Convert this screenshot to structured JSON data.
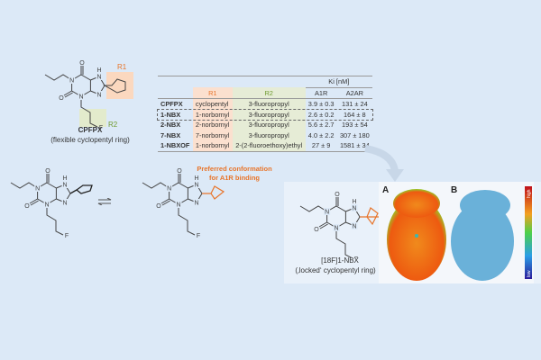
{
  "top_molecule": {
    "name": "CPFPX",
    "caption": "(flexible cyclopentyl ring)",
    "r1_label": "R1",
    "r2_label": "R2"
  },
  "table": {
    "ki_header": "Ki [nM]",
    "columns": [
      "",
      "R1",
      "R2",
      "A1R",
      "A2AR"
    ],
    "rows": [
      {
        "name": "CPFPX",
        "r1": "cyclopentyl",
        "r2": "3-fluoropropyl",
        "a1": "3.9 ± 0.3",
        "a2a": "131 ± 24"
      },
      {
        "name": "1-NBX",
        "r1": "1-norbornyl",
        "r2": "3-fluoropropyl",
        "a1": "2.6 ± 0.2",
        "a2a": "164 ± 8"
      },
      {
        "name": "2-NBX",
        "r1": "2-norbornyl",
        "r2": "3-fluoropropyl",
        "a1": "5.6 ± 2.7",
        "a2a": "193 ± 54"
      },
      {
        "name": "7-NBX",
        "r1": "7-norbornyl",
        "r2": "3-fluoropropyl",
        "a1": "4.0 ± 2.2",
        "a2a": "307 ± 180"
      },
      {
        "name": "1-NBXOF",
        "r1": "1-norbornyl",
        "r2": "2-(2-fluoroethoxy)ethyl",
        "a1": "27 ± 9",
        "a2a": "1581 ± 34"
      }
    ]
  },
  "conformation_note": {
    "line1": "Preferred conformation",
    "line2": "for A1R binding"
  },
  "bottom_molecule": {
    "name": "[18F]1-NBX",
    "caption": "(‚locked‘ cyclopentyl ring)",
    "isotope_label": "18F"
  },
  "images": {
    "panel_a": "A",
    "panel_b": "B",
    "scale_high": "high",
    "scale_low": "low"
  },
  "colors": {
    "background": "#dce9f7",
    "accent_orange": "#e8752b",
    "accent_green": "#6f9a2f"
  }
}
